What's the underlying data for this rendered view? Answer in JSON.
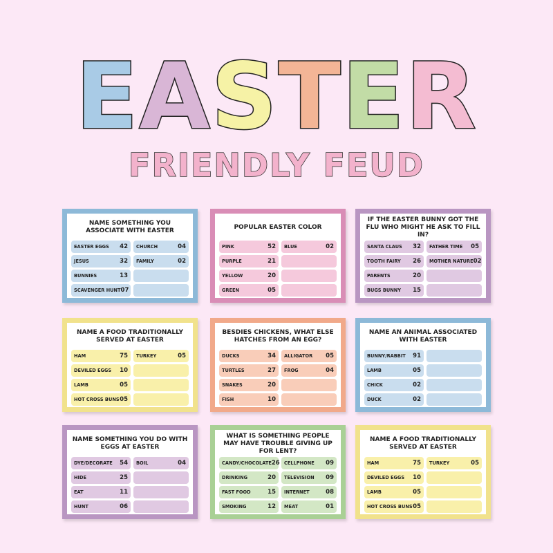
{
  "header": {
    "title": "EASTER",
    "subtitle": "FRIENDLY FEUD"
  },
  "cards": [
    {
      "question": "NAME SOMETHING YOU ASSOCIATE WITH EASTER",
      "answers": [
        {
          "text": "EASTER EGGS",
          "points": "42"
        },
        {
          "text": "JESUS",
          "points": "32"
        },
        {
          "text": "BUNNIES",
          "points": "13"
        },
        {
          "text": "SCAVENGER HUNT",
          "points": "07"
        },
        {
          "text": "CHURCH",
          "points": "04"
        },
        {
          "text": "FAMILY",
          "points": "02"
        }
      ]
    },
    {
      "question": "POPULAR EASTER COLOR",
      "answers": [
        {
          "text": "PINK",
          "points": "52"
        },
        {
          "text": "PURPLE",
          "points": "21"
        },
        {
          "text": "YELLOW",
          "points": "20"
        },
        {
          "text": "GREEN",
          "points": "05"
        },
        {
          "text": "BLUE",
          "points": "02"
        }
      ]
    },
    {
      "question": "IF THE EASTER BUNNY GOT THE FLU WHO MIGHT HE ASK TO FILL IN?",
      "answers": [
        {
          "text": "SANTA CLAUS",
          "points": "32"
        },
        {
          "text": "TOOTH FAIRY",
          "points": "26"
        },
        {
          "text": "PARENTS",
          "points": "20"
        },
        {
          "text": "BUGS BUNNY",
          "points": "15"
        },
        {
          "text": "FATHER TIME",
          "points": "05"
        },
        {
          "text": "MOTHER NATURE",
          "points": "02"
        }
      ]
    },
    {
      "question": "NAME A FOOD TRADITIONALLY SERVED AT EASTER",
      "answers": [
        {
          "text": "HAM",
          "points": "75"
        },
        {
          "text": "DEVILED EGGS",
          "points": "10"
        },
        {
          "text": "LAMB",
          "points": "05"
        },
        {
          "text": "HOT CROSS BUNS",
          "points": "05"
        },
        {
          "text": "TURKEY",
          "points": "05"
        }
      ]
    },
    {
      "question": "BESDIES CHICKENS, WHAT ELSE HATCHES FROM AN EGG?",
      "answers": [
        {
          "text": "DUCKS",
          "points": "34"
        },
        {
          "text": "TURTLES",
          "points": "27"
        },
        {
          "text": "SNAKES",
          "points": "20"
        },
        {
          "text": "FISH",
          "points": "10"
        },
        {
          "text": "ALLIGATOR",
          "points": "05"
        },
        {
          "text": "FROG",
          "points": "04"
        }
      ]
    },
    {
      "question": "NAME AN ANIMAL ASSOCIATED WITH EASTER",
      "answers": [
        {
          "text": "BUNNY/RABBIT",
          "points": "91"
        },
        {
          "text": "LAMB",
          "points": "05"
        },
        {
          "text": "CHICK",
          "points": "02"
        },
        {
          "text": "DUCK",
          "points": "02"
        }
      ]
    },
    {
      "question": "NAME SOMETHING YOU DO WITH EGGS AT EASTER",
      "answers": [
        {
          "text": "DYE/DECORATE",
          "points": "54"
        },
        {
          "text": "HIDE",
          "points": "25"
        },
        {
          "text": "EAT",
          "points": "11"
        },
        {
          "text": "HUNT",
          "points": "06"
        },
        {
          "text": "BOIL",
          "points": "04"
        }
      ]
    },
    {
      "question": "WHAT IS SOMETHING PEOPLE MAY HAVE TROUBLE GIVING UP FOR LENT?",
      "answers": [
        {
          "text": "CANDY/CHOCOLATE",
          "points": "26"
        },
        {
          "text": "DRINKING",
          "points": "20"
        },
        {
          "text": "FAST FOOD",
          "points": "15"
        },
        {
          "text": "SMOKING",
          "points": "12"
        },
        {
          "text": "CELLPHONE",
          "points": "09"
        },
        {
          "text": "TELEVISION",
          "points": "09"
        },
        {
          "text": "INTERNET",
          "points": "08"
        },
        {
          "text": "MEAT",
          "points": "01"
        }
      ]
    },
    {
      "question": "NAME A FOOD TRADITIONALLY SERVED AT EASTER",
      "answers": [
        {
          "text": "HAM",
          "points": "75"
        },
        {
          "text": "DEVILED EGGS",
          "points": "10"
        },
        {
          "text": "LAMB",
          "points": "05"
        },
        {
          "text": "HOT CROSS BUNS",
          "points": "05"
        },
        {
          "text": "TURKEY",
          "points": "05"
        }
      ]
    }
  ]
}
